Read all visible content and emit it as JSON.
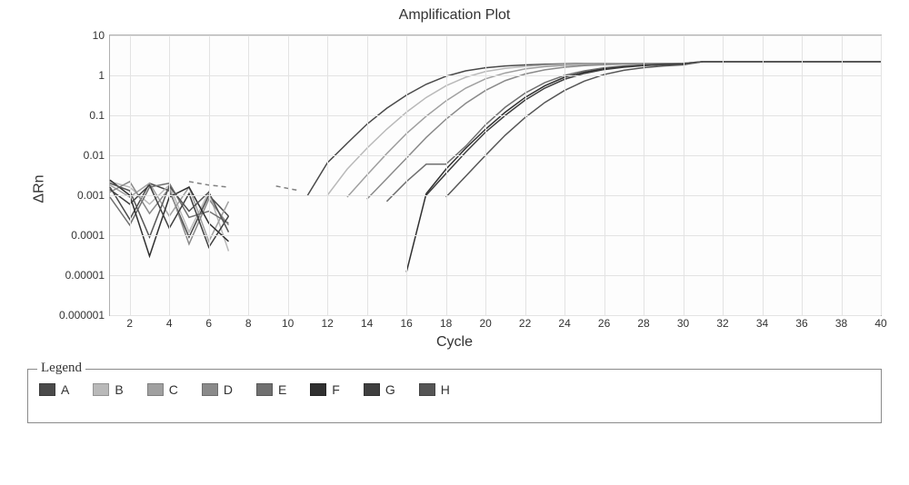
{
  "chart": {
    "type": "line",
    "title": "Amplification Plot",
    "title_fontsize": 16,
    "xlabel": "Cycle",
    "ylabel": "ΔRn",
    "label_fontsize": 16,
    "background_color": "#fdfdfd",
    "grid_color": "#e3e3e3",
    "axis_color": "#b0b0b0",
    "xlim": [
      1,
      40
    ],
    "xticks": [
      2,
      4,
      6,
      8,
      10,
      12,
      14,
      16,
      18,
      20,
      22,
      24,
      26,
      28,
      30,
      32,
      34,
      36,
      38,
      40
    ],
    "yscale": "log",
    "ylim": [
      1e-06,
      10
    ],
    "yticks": [
      1e-06,
      1e-05,
      0.0001,
      0.001,
      0.01,
      0.1,
      1,
      10
    ],
    "ytick_labels": [
      "0.000001",
      "0.00001",
      "0.0001",
      "0.001",
      "0.01",
      "0.1",
      "1",
      "10"
    ],
    "line_width": 1.5,
    "series": [
      {
        "id": "A",
        "color": "#4a4a4a",
        "main": [
          [
            11,
            0.001
          ],
          [
            12,
            0.0065
          ],
          [
            13,
            0.02
          ],
          [
            14,
            0.06
          ],
          [
            15,
            0.15
          ],
          [
            16,
            0.32
          ],
          [
            17,
            0.6
          ],
          [
            18,
            0.95
          ],
          [
            19,
            1.3
          ],
          [
            20,
            1.55
          ],
          [
            21,
            1.72
          ],
          [
            22,
            1.82
          ],
          [
            23,
            1.9
          ],
          [
            24,
            1.95
          ],
          [
            25,
            1.98
          ],
          [
            26,
            2.0
          ],
          [
            27,
            2.0
          ],
          [
            28,
            2.0
          ],
          [
            29,
            2.0
          ],
          [
            30,
            2.0
          ],
          [
            31,
            2.2
          ],
          [
            32,
            2.2
          ],
          [
            33,
            2.2
          ],
          [
            34,
            2.2
          ],
          [
            35,
            2.2
          ],
          [
            36,
            2.2
          ],
          [
            37,
            2.2
          ],
          [
            38,
            2.2
          ],
          [
            39,
            2.2
          ],
          [
            40,
            2.2
          ]
        ],
        "noise": [
          [
            1,
            0.0016
          ],
          [
            2,
            0.00025
          ],
          [
            3,
            0.002
          ],
          [
            4,
            0.0013
          ],
          [
            5,
            9e-05
          ],
          [
            6,
            0.001
          ],
          [
            7,
            0.0003
          ]
        ]
      },
      {
        "id": "B",
        "color": "#b9b9b9",
        "main": [
          [
            12,
            0.001
          ],
          [
            13,
            0.0045
          ],
          [
            14,
            0.015
          ],
          [
            15,
            0.045
          ],
          [
            16,
            0.12
          ],
          [
            17,
            0.28
          ],
          [
            18,
            0.55
          ],
          [
            19,
            0.9
          ],
          [
            20,
            1.25
          ],
          [
            21,
            1.5
          ],
          [
            22,
            1.68
          ],
          [
            23,
            1.8
          ],
          [
            24,
            1.88
          ],
          [
            25,
            1.93
          ],
          [
            26,
            1.97
          ],
          [
            27,
            2.0
          ],
          [
            28,
            2.0
          ],
          [
            29,
            2.0
          ],
          [
            30,
            2.0
          ],
          [
            31,
            2.2
          ],
          [
            32,
            2.2
          ],
          [
            33,
            2.2
          ],
          [
            34,
            2.2
          ],
          [
            35,
            2.2
          ],
          [
            36,
            2.2
          ],
          [
            37,
            2.2
          ],
          [
            38,
            2.2
          ],
          [
            39,
            2.2
          ],
          [
            40,
            2.2
          ]
        ],
        "noise": [
          [
            1,
            0.0022
          ],
          [
            2,
            0.0016
          ],
          [
            3,
            0.0006
          ],
          [
            4,
            0.0018
          ],
          [
            5,
            0.00012
          ],
          [
            6,
            0.0012
          ],
          [
            7,
            4e-05
          ]
        ]
      },
      {
        "id": "C",
        "color": "#a0a0a0",
        "main": [
          [
            13,
            0.0009
          ],
          [
            14,
            0.0032
          ],
          [
            15,
            0.011
          ],
          [
            16,
            0.035
          ],
          [
            17,
            0.095
          ],
          [
            18,
            0.23
          ],
          [
            19,
            0.48
          ],
          [
            20,
            0.82
          ],
          [
            21,
            1.15
          ],
          [
            22,
            1.45
          ],
          [
            23,
            1.65
          ],
          [
            24,
            1.78
          ],
          [
            25,
            1.87
          ],
          [
            26,
            1.93
          ],
          [
            27,
            1.97
          ],
          [
            28,
            2.0
          ],
          [
            29,
            2.0
          ],
          [
            30,
            2.0
          ],
          [
            31,
            2.2
          ],
          [
            32,
            2.2
          ],
          [
            33,
            2.2
          ],
          [
            34,
            2.2
          ],
          [
            35,
            2.2
          ],
          [
            36,
            2.2
          ],
          [
            37,
            2.2
          ],
          [
            38,
            2.2
          ],
          [
            39,
            2.2
          ],
          [
            40,
            2.2
          ]
        ],
        "noise": [
          [
            1,
            0.0018
          ],
          [
            2,
            0.0009
          ],
          [
            3,
            0.002
          ],
          [
            4,
            0.0003
          ],
          [
            5,
            0.0016
          ],
          [
            6,
            7e-05
          ],
          [
            7,
            0.0007
          ]
        ]
      },
      {
        "id": "D",
        "color": "#8a8a8a",
        "main": [
          [
            14,
            0.0008
          ],
          [
            15,
            0.0026
          ],
          [
            16,
            0.0085
          ],
          [
            17,
            0.028
          ],
          [
            18,
            0.08
          ],
          [
            19,
            0.2
          ],
          [
            20,
            0.42
          ],
          [
            21,
            0.74
          ],
          [
            22,
            1.08
          ],
          [
            23,
            1.38
          ],
          [
            24,
            1.6
          ],
          [
            25,
            1.75
          ],
          [
            26,
            1.85
          ],
          [
            27,
            1.92
          ],
          [
            28,
            1.97
          ],
          [
            29,
            2.0
          ],
          [
            30,
            2.0
          ],
          [
            31,
            2.2
          ],
          [
            32,
            2.2
          ],
          [
            33,
            2.2
          ],
          [
            34,
            2.2
          ],
          [
            35,
            2.2
          ],
          [
            36,
            2.2
          ],
          [
            37,
            2.2
          ],
          [
            38,
            2.2
          ],
          [
            39,
            2.2
          ],
          [
            40,
            2.2
          ]
        ],
        "noise": [
          [
            1,
            0.0012
          ],
          [
            2,
            0.0022
          ],
          [
            3,
            0.00035
          ],
          [
            4,
            0.0015
          ],
          [
            5,
            6e-05
          ],
          [
            6,
            0.0008
          ],
          [
            7,
            0.00018
          ]
        ]
      },
      {
        "id": "E",
        "color": "#707070",
        "main": [
          [
            15,
            0.0007
          ],
          [
            16,
            0.0022
          ],
          [
            17,
            0.006
          ],
          [
            18,
            0.006
          ],
          [
            19,
            0.017
          ],
          [
            20,
            0.058
          ],
          [
            21,
            0.16
          ],
          [
            22,
            0.36
          ],
          [
            23,
            0.66
          ],
          [
            24,
            1.0
          ],
          [
            25,
            1.3
          ],
          [
            26,
            1.55
          ],
          [
            27,
            1.72
          ],
          [
            28,
            1.84
          ],
          [
            29,
            1.92
          ],
          [
            30,
            1.97
          ],
          [
            31,
            2.2
          ],
          [
            32,
            2.2
          ],
          [
            33,
            2.2
          ],
          [
            34,
            2.2
          ],
          [
            35,
            2.2
          ],
          [
            36,
            2.2
          ],
          [
            37,
            2.2
          ],
          [
            38,
            2.2
          ],
          [
            39,
            2.2
          ],
          [
            40,
            2.2
          ]
        ],
        "noise": [
          [
            1,
            0.0009
          ],
          [
            2,
            0.00018
          ],
          [
            3,
            0.0016
          ],
          [
            4,
            0.002
          ],
          [
            5,
            0.00028
          ],
          [
            6,
            0.0004
          ],
          [
            7,
            0.0002
          ]
        ]
      },
      {
        "id": "F",
        "color": "#303030",
        "main": [
          [
            16,
            1.2e-05
          ],
          [
            17,
            0.0011
          ],
          [
            18,
            0.0045
          ],
          [
            19,
            0.015
          ],
          [
            20,
            0.045
          ],
          [
            21,
            0.12
          ],
          [
            22,
            0.28
          ],
          [
            23,
            0.55
          ],
          [
            24,
            0.9
          ],
          [
            25,
            1.2
          ],
          [
            26,
            1.45
          ],
          [
            27,
            1.64
          ],
          [
            28,
            1.78
          ],
          [
            29,
            1.88
          ],
          [
            30,
            1.94
          ],
          [
            31,
            2.2
          ],
          [
            32,
            2.2
          ],
          [
            33,
            2.2
          ],
          [
            34,
            2.2
          ],
          [
            35,
            2.2
          ],
          [
            36,
            2.2
          ],
          [
            37,
            2.2
          ],
          [
            38,
            2.2
          ],
          [
            39,
            2.2
          ],
          [
            40,
            2.2
          ]
        ],
        "noise": [
          [
            1,
            0.0024
          ],
          [
            2,
            0.001
          ],
          [
            3,
            3e-05
          ],
          [
            4,
            0.0009
          ],
          [
            5,
            0.0016
          ],
          [
            6,
            0.0002
          ],
          [
            7,
            7e-05
          ]
        ]
      },
      {
        "id": "G",
        "color": "#3f3f3f",
        "main": [
          [
            17,
            0.001
          ],
          [
            18,
            0.0035
          ],
          [
            19,
            0.012
          ],
          [
            20,
            0.038
          ],
          [
            21,
            0.1
          ],
          [
            22,
            0.24
          ],
          [
            23,
            0.48
          ],
          [
            24,
            0.8
          ],
          [
            25,
            1.12
          ],
          [
            26,
            1.4
          ],
          [
            27,
            1.6
          ],
          [
            28,
            1.75
          ],
          [
            29,
            1.85
          ],
          [
            30,
            1.92
          ],
          [
            31,
            2.2
          ],
          [
            32,
            2.2
          ],
          [
            33,
            2.2
          ],
          [
            34,
            2.2
          ],
          [
            35,
            2.2
          ],
          [
            36,
            2.2
          ],
          [
            37,
            2.2
          ],
          [
            38,
            2.2
          ],
          [
            39,
            2.2
          ],
          [
            40,
            2.2
          ]
        ],
        "noise": [
          [
            1,
            0.0014
          ],
          [
            2,
            0.0006
          ],
          [
            3,
            0.0018
          ],
          [
            4,
            0.00015
          ],
          [
            5,
            0.0011
          ],
          [
            6,
            5e-05
          ],
          [
            7,
            0.0003
          ]
        ]
      },
      {
        "id": "H",
        "color": "#555555",
        "main": [
          [
            18,
            0.0009
          ],
          [
            19,
            0.003
          ],
          [
            20,
            0.01
          ],
          [
            21,
            0.032
          ],
          [
            22,
            0.088
          ],
          [
            23,
            0.21
          ],
          [
            24,
            0.42
          ],
          [
            25,
            0.72
          ],
          [
            26,
            1.05
          ],
          [
            27,
            1.34
          ],
          [
            28,
            1.56
          ],
          [
            29,
            1.72
          ],
          [
            30,
            1.84
          ],
          [
            31,
            2.2
          ],
          [
            32,
            2.2
          ],
          [
            33,
            2.2
          ],
          [
            34,
            2.2
          ],
          [
            35,
            2.2
          ],
          [
            36,
            2.2
          ],
          [
            37,
            2.2
          ],
          [
            38,
            2.2
          ],
          [
            39,
            2.2
          ],
          [
            40,
            2.2
          ]
        ],
        "noise": [
          [
            1,
            0.002
          ],
          [
            2,
            0.0013
          ],
          [
            3,
            9e-05
          ],
          [
            4,
            0.0017
          ],
          [
            5,
            0.0004
          ],
          [
            6,
            0.0012
          ],
          [
            7,
            0.00012
          ]
        ]
      }
    ],
    "dashed_segments": [
      {
        "color": "#808080",
        "points": [
          [
            5,
            0.0022
          ],
          [
            6,
            0.0018
          ],
          [
            7,
            0.0016
          ]
        ]
      },
      {
        "color": "#808080",
        "points": [
          [
            9.4,
            0.0017
          ],
          [
            10.6,
            0.0013
          ]
        ]
      }
    ]
  },
  "legend": {
    "title": "Legend",
    "items": [
      {
        "label": "A",
        "color": "#4a4a4a"
      },
      {
        "label": "B",
        "color": "#b9b9b9"
      },
      {
        "label": "C",
        "color": "#a0a0a0"
      },
      {
        "label": "D",
        "color": "#8a8a8a"
      },
      {
        "label": "E",
        "color": "#707070"
      },
      {
        "label": "F",
        "color": "#303030"
      },
      {
        "label": "G",
        "color": "#3f3f3f"
      },
      {
        "label": "H",
        "color": "#555555"
      }
    ]
  }
}
